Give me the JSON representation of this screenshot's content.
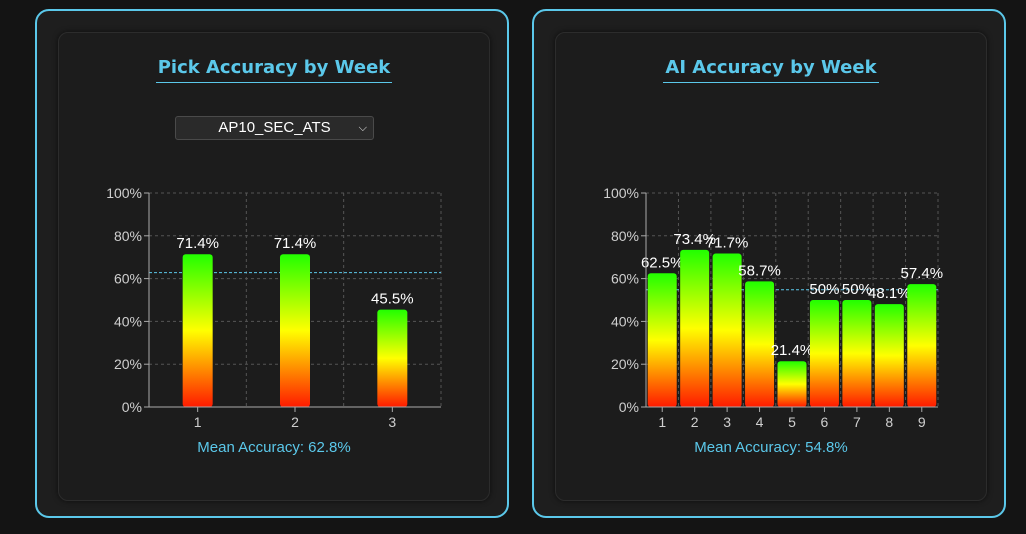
{
  "colors": {
    "accent": "#5bc8ea",
    "bar_top": "#22ff00",
    "bar_mid": "#ffff00",
    "bar_bottom": "#ff1a00"
  },
  "left_panel": {
    "title": "Pick Accuracy by Week",
    "dropdown": {
      "selected": "AP10_SEC_ATS"
    },
    "mean_text": "Mean Accuracy: 62.8%"
  },
  "right_panel": {
    "title": "AI Accuracy by Week",
    "mean_text": "Mean Accuracy: 54.8%"
  },
  "chart_data": [
    {
      "type": "bar",
      "title": "Pick Accuracy by Week",
      "categories": [
        "1",
        "2",
        "3"
      ],
      "values": [
        71.4,
        71.4,
        45.5
      ],
      "data_labels": [
        "71.4%",
        "71.4%",
        "45.5%"
      ],
      "ylim": [
        0,
        100
      ],
      "y_ticks": [
        "0%",
        "20%",
        "40%",
        "60%",
        "80%",
        "100%"
      ],
      "mean_line": 62.8,
      "grid": true
    },
    {
      "type": "bar",
      "title": "AI Accuracy by Week",
      "categories": [
        "1",
        "2",
        "3",
        "4",
        "5",
        "6",
        "7",
        "8",
        "9"
      ],
      "values": [
        62.5,
        73.4,
        71.7,
        58.7,
        21.4,
        50,
        50,
        48.1,
        57.4
      ],
      "data_labels": [
        "62.5%",
        "73.4%",
        "71.7%",
        "58.7%",
        "21.4%",
        "50%",
        "50%",
        "48.1%",
        "57.4%"
      ],
      "ylim": [
        0,
        100
      ],
      "y_ticks": [
        "0%",
        "20%",
        "40%",
        "60%",
        "80%",
        "100%"
      ],
      "mean_line": 54.8,
      "grid": true
    }
  ]
}
